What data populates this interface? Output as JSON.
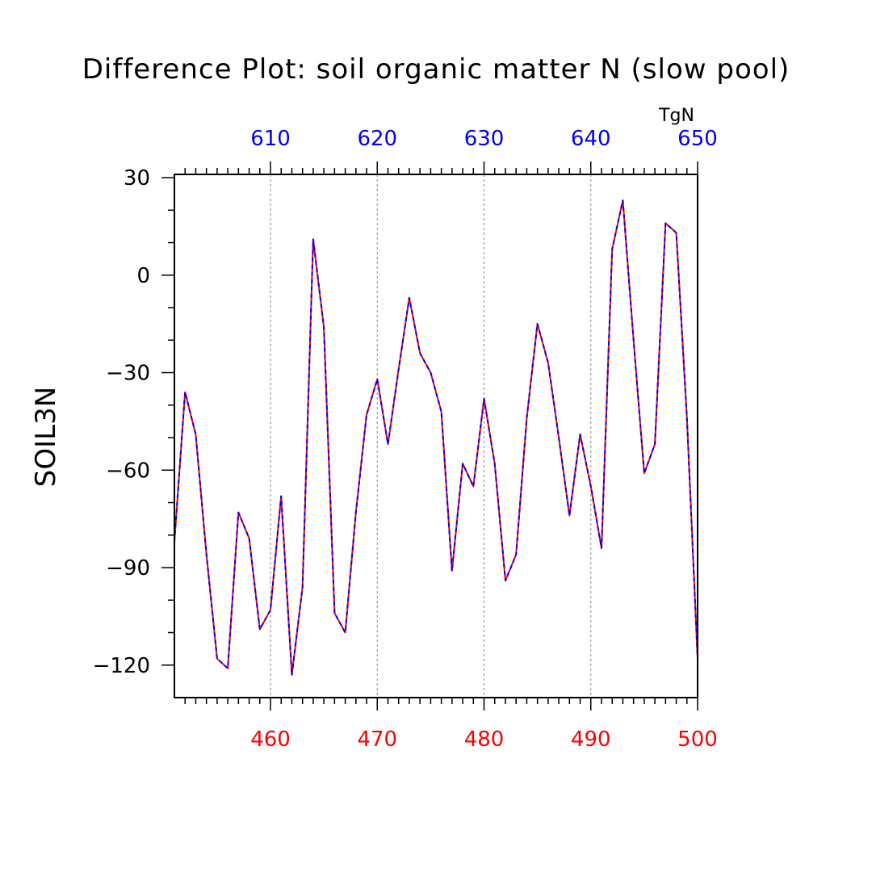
{
  "chart_data": {
    "type": "line",
    "title": "Difference Plot: soil organic matter N (slow pool)",
    "ylabel": "SOIL3N",
    "top_axis_unit": "TgN",
    "ylim": [
      -130,
      31
    ],
    "xlim_bottom": [
      451,
      500
    ],
    "xlim_top": [
      601,
      650
    ],
    "bottom_axis_color": "#ff0000",
    "top_axis_color": "#0000ff",
    "grid": "dashed vertical lines at labeled x ticks",
    "yticks": [
      {
        "value": 30,
        "label": "30"
      },
      {
        "value": 0,
        "label": "0"
      },
      {
        "value": -30,
        "label": "−30"
      },
      {
        "value": -60,
        "label": "−60"
      },
      {
        "value": -90,
        "label": "−90"
      },
      {
        "value": -120,
        "label": "−120"
      }
    ],
    "xticks_bottom": [
      {
        "value": 460,
        "label": "460"
      },
      {
        "value": 470,
        "label": "470"
      },
      {
        "value": 480,
        "label": "480"
      },
      {
        "value": 490,
        "label": "490"
      },
      {
        "value": 500,
        "label": "500"
      }
    ],
    "xticks_top": [
      {
        "value": 610,
        "label": "610"
      },
      {
        "value": 620,
        "label": "620"
      },
      {
        "value": 630,
        "label": "630"
      },
      {
        "value": 640,
        "label": "640"
      },
      {
        "value": 650,
        "label": "650"
      }
    ],
    "x": [
      451,
      452,
      453,
      454,
      455,
      456,
      457,
      458,
      459,
      460,
      461,
      462,
      463,
      464,
      465,
      466,
      467,
      468,
      469,
      470,
      471,
      472,
      473,
      474,
      475,
      476,
      477,
      478,
      479,
      480,
      481,
      482,
      483,
      484,
      485,
      486,
      487,
      488,
      489,
      490,
      491,
      492,
      493,
      494,
      495,
      496,
      497,
      498,
      499,
      500
    ],
    "series": [
      {
        "color": "#ff0000",
        "style": "solid",
        "values": [
          -82,
          -36,
          -49,
          -86,
          -118,
          -121,
          -73,
          -81,
          -109,
          -103,
          -68,
          -123,
          -96,
          11,
          -16,
          -104,
          -110,
          -73,
          -43,
          -32,
          -52,
          -29,
          -7,
          -24,
          -30,
          -42,
          -91,
          -58,
          -65,
          -38,
          -58,
          -94,
          -86,
          -44,
          -15,
          -27,
          -50,
          -74,
          -49,
          -65,
          -84,
          8,
          23,
          -20,
          -61,
          -52,
          16,
          13,
          -44,
          -118
        ]
      },
      {
        "color": "#0000ff",
        "style": "dashed",
        "values": [
          -82,
          -36,
          -49,
          -86,
          -118,
          -121,
          -73,
          -81,
          -109,
          -103,
          -68,
          -123,
          -96,
          11,
          -16,
          -104,
          -110,
          -73,
          -43,
          -32,
          -52,
          -29,
          -7,
          -24,
          -30,
          -42,
          -91,
          -58,
          -65,
          -38,
          -58,
          -94,
          -86,
          -44,
          -15,
          -27,
          -50,
          -74,
          -49,
          -65,
          -84,
          8,
          23,
          -20,
          -61,
          -52,
          16,
          13,
          -44,
          -118
        ]
      }
    ]
  }
}
